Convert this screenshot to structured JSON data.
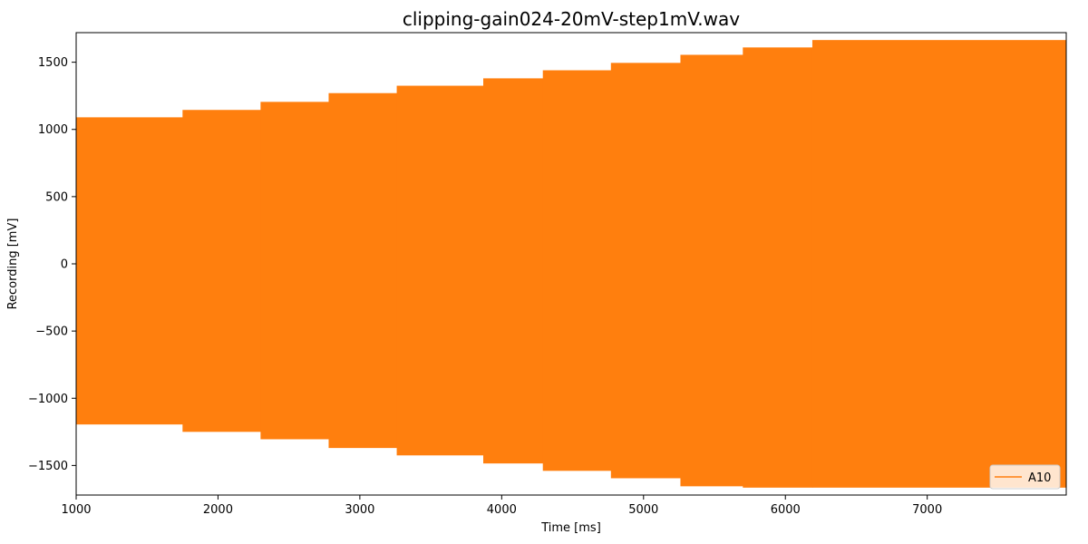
{
  "chart_data": {
    "type": "line",
    "title": "clipping-gain024-20mV-step1mV.wav",
    "xlabel": "Time [ms]",
    "ylabel": "Recording [mV]",
    "xlim": [
      1000,
      7980
    ],
    "ylim": [
      -1720,
      1720
    ],
    "x_ticks": [
      1000,
      2000,
      3000,
      4000,
      5000,
      6000,
      7000
    ],
    "x_tick_labels": [
      "1000",
      "2000",
      "3000",
      "4000",
      "5000",
      "6000",
      "7000"
    ],
    "y_ticks": [
      -1500,
      -1000,
      -500,
      0,
      500,
      1000,
      1500
    ],
    "y_tick_labels": [
      "−1500",
      "−1000",
      "−500",
      "0",
      "500",
      "1000",
      "1500"
    ],
    "grid": false,
    "legend_position": "lower-right",
    "series": [
      {
        "name": "A10",
        "color": "#ff7f0e",
        "segments": [
          {
            "x_start": 1000,
            "x_end": 1750,
            "y_max": 1090,
            "y_min": -1195
          },
          {
            "x_start": 1750,
            "x_end": 2300,
            "y_max": 1145,
            "y_min": -1250
          },
          {
            "x_start": 2300,
            "x_end": 2780,
            "y_max": 1205,
            "y_min": -1305
          },
          {
            "x_start": 2780,
            "x_end": 3260,
            "y_max": 1270,
            "y_min": -1370
          },
          {
            "x_start": 3260,
            "x_end": 3870,
            "y_max": 1325,
            "y_min": -1425
          },
          {
            "x_start": 3870,
            "x_end": 4290,
            "y_max": 1380,
            "y_min": -1485
          },
          {
            "x_start": 4290,
            "x_end": 4770,
            "y_max": 1440,
            "y_min": -1540
          },
          {
            "x_start": 4770,
            "x_end": 5260,
            "y_max": 1495,
            "y_min": -1595
          },
          {
            "x_start": 5260,
            "x_end": 5700,
            "y_max": 1555,
            "y_min": -1655
          },
          {
            "x_start": 5700,
            "x_end": 6190,
            "y_max": 1610,
            "y_min": -1665
          },
          {
            "x_start": 6190,
            "x_end": 7980,
            "y_max": 1665,
            "y_min": -1665
          }
        ]
      }
    ]
  }
}
